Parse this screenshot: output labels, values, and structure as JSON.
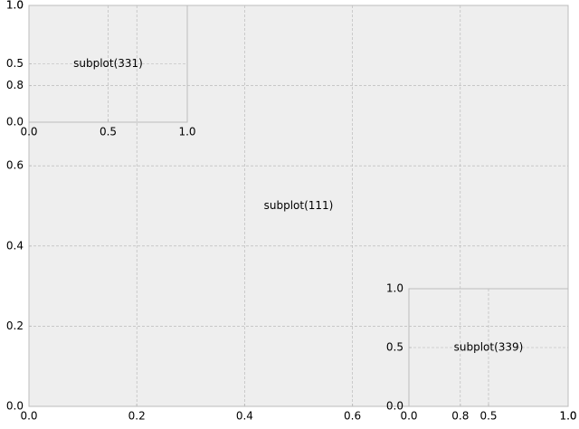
{
  "chart_data": [
    {
      "type": "blank",
      "annotation": "subplot(111)",
      "grid": true,
      "xlim": [
        0,
        1
      ],
      "ylim": [
        0,
        1
      ],
      "xticks": [
        {
          "value": 0,
          "label": "0.0"
        },
        0.2,
        0.4,
        0.6,
        0.8,
        {
          "value": 1,
          "label": "1.0"
        }
      ],
      "yticks": [
        {
          "value": 0,
          "label": "0.0"
        },
        0.2,
        0.4,
        0.6,
        0.8,
        {
          "value": 1,
          "label": "1.0"
        }
      ]
    },
    {
      "type": "blank",
      "annotation": "subplot(331)",
      "grid": true,
      "xlim": [
        0,
        1
      ],
      "ylim": [
        0,
        1
      ],
      "xticks": [
        {
          "value": 0,
          "label": "0.0"
        },
        0.5,
        {
          "value": 1,
          "label": "1.0"
        }
      ],
      "yticks": [
        {
          "value": 0,
          "label": "0.0"
        },
        0.5,
        {
          "value": 1,
          "label": "1.0"
        }
      ]
    },
    {
      "type": "blank",
      "annotation": "subplot(339)",
      "grid": true,
      "xlim": [
        0,
        1
      ],
      "ylim": [
        0,
        1
      ],
      "xticks": [
        {
          "value": 0,
          "label": "0.0"
        },
        0.5,
        {
          "value": 1,
          "label": "1.0"
        }
      ],
      "yticks": [
        {
          "value": 0,
          "label": "0.0"
        },
        0.5,
        {
          "value": 1,
          "label": "1.0"
        }
      ]
    }
  ]
}
